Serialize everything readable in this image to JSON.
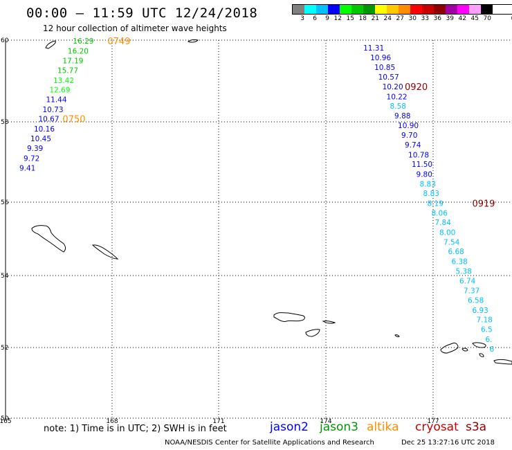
{
  "header": {
    "title": "00:00 – 11:59 UTC 12/24/2018",
    "subtitle": "12 hour collection of altimeter wave heights"
  },
  "color_scale": {
    "unit_label": "(ft)",
    "bins": [
      {
        "label": "3",
        "color": "#808080"
      },
      {
        "label": "6",
        "color": "#00ffff"
      },
      {
        "label": "9",
        "color": "#00c0ff"
      },
      {
        "label": "12",
        "color": "#0000ff"
      },
      {
        "label": "15",
        "color": "#00ff00"
      },
      {
        "label": "18",
        "color": "#00c800"
      },
      {
        "label": "21",
        "color": "#009600"
      },
      {
        "label": "24",
        "color": "#ffff00"
      },
      {
        "label": "27",
        "color": "#ffc800"
      },
      {
        "label": "30",
        "color": "#ff8c00"
      },
      {
        "label": "33",
        "color": "#ff0000"
      },
      {
        "label": "36",
        "color": "#c80000"
      },
      {
        "label": "39",
        "color": "#8c0000"
      },
      {
        "label": "42",
        "color": "#a000a0"
      },
      {
        "label": "45",
        "color": "#ff00ff"
      },
      {
        "label": "70",
        "color": "#ffa0ff"
      },
      {
        "label": "",
        "color": "#000000"
      }
    ]
  },
  "map": {
    "lat_labels": [
      "60",
      "58",
      "56",
      "54",
      "52",
      "50"
    ],
    "lon_labels": [
      "165",
      "168",
      "171",
      "174",
      "177"
    ],
    "extent": {
      "lon": [
        165,
        179.2
      ],
      "lat": [
        50,
        60
      ]
    }
  },
  "tracks": [
    {
      "name": "west-track",
      "points": [
        {
          "lon": 166.95,
          "lat": 59.98,
          "v": "16.29",
          "c": "#00c800"
        },
        {
          "lon": 166.8,
          "lat": 59.72,
          "v": "16.20",
          "c": "#00c800"
        },
        {
          "lon": 166.65,
          "lat": 59.46,
          "v": "17.19",
          "c": "#00c800"
        },
        {
          "lon": 166.5,
          "lat": 59.2,
          "v": "15.77",
          "c": "#00c800"
        },
        {
          "lon": 166.38,
          "lat": 58.94,
          "v": "13.42",
          "c": "#00ff00"
        },
        {
          "lon": 166.27,
          "lat": 58.69,
          "v": "12.69",
          "c": "#00ff00"
        },
        {
          "lon": 166.17,
          "lat": 58.43,
          "v": "11.44",
          "c": "#0000ff"
        },
        {
          "lon": 166.07,
          "lat": 58.17,
          "v": "10.73",
          "c": "#0000ff"
        },
        {
          "lon": 165.95,
          "lat": 57.92,
          "v": "10.67",
          "c": "#0000ff"
        },
        {
          "lon": 165.82,
          "lat": 57.66,
          "v": "10.16",
          "c": "#0000ff"
        },
        {
          "lon": 165.72,
          "lat": 57.4,
          "v": "10.45",
          "c": "#0000ff"
        },
        {
          "lon": 165.62,
          "lat": 57.14,
          "v": "9.39",
          "c": "#0000ff"
        },
        {
          "lon": 165.52,
          "lat": 56.88,
          "v": "9.72",
          "c": "#0000ff"
        },
        {
          "lon": 165.4,
          "lat": 56.62,
          "v": "9.41",
          "c": "#0000ff"
        }
      ]
    },
    {
      "name": "east-track",
      "points": [
        {
          "lon": 175.35,
          "lat": 59.8,
          "v": "11.31",
          "c": "#0000ff"
        },
        {
          "lon": 175.55,
          "lat": 59.54,
          "v": "10.96",
          "c": "#0000ff"
        },
        {
          "lon": 175.67,
          "lat": 59.29,
          "v": "10.85",
          "c": "#0000ff"
        },
        {
          "lon": 175.78,
          "lat": 59.03,
          "v": "10.57",
          "c": "#0000ff"
        },
        {
          "lon": 175.9,
          "lat": 58.77,
          "v": "10.20",
          "c": "#0000ff"
        },
        {
          "lon": 176.02,
          "lat": 58.51,
          "v": "10.22",
          "c": "#0000ff"
        },
        {
          "lon": 176.12,
          "lat": 58.26,
          "v": "8.58",
          "c": "#00c0ff"
        },
        {
          "lon": 176.25,
          "lat": 58.0,
          "v": "9.88",
          "c": "#0000ff"
        },
        {
          "lon": 176.35,
          "lat": 57.75,
          "v": "10.90",
          "c": "#0000ff"
        },
        {
          "lon": 176.45,
          "lat": 57.49,
          "v": "9.70",
          "c": "#0000ff"
        },
        {
          "lon": 176.55,
          "lat": 57.23,
          "v": "9.74",
          "c": "#0000ff"
        },
        {
          "lon": 176.65,
          "lat": 56.97,
          "v": "10.78",
          "c": "#0000ff"
        },
        {
          "lon": 176.75,
          "lat": 56.72,
          "v": "11.50",
          "c": "#0000ff"
        },
        {
          "lon": 176.88,
          "lat": 56.46,
          "v": "9.80",
          "c": "#0000ff"
        },
        {
          "lon": 176.98,
          "lat": 56.2,
          "v": "8.83",
          "c": "#00c0ff"
        },
        {
          "lon": 177.08,
          "lat": 55.95,
          "v": "8.83",
          "c": "#00c0ff"
        },
        {
          "lon": 177.2,
          "lat": 55.69,
          "v": "8.19",
          "c": "#00c0ff"
        },
        {
          "lon": 177.32,
          "lat": 55.43,
          "v": "8.06",
          "c": "#00c0ff"
        },
        {
          "lon": 177.42,
          "lat": 55.18,
          "v": "7.84",
          "c": "#00c0ff"
        },
        {
          "lon": 177.55,
          "lat": 54.92,
          "v": "8.00",
          "c": "#00c0ff"
        },
        {
          "lon": 177.67,
          "lat": 54.66,
          "v": "7.54",
          "c": "#00c0ff"
        },
        {
          "lon": 177.8,
          "lat": 54.41,
          "v": "6.68",
          "c": "#00c0ff"
        },
        {
          "lon": 177.9,
          "lat": 54.15,
          "v": "6.38",
          "c": "#00c0ff"
        },
        {
          "lon": 178.02,
          "lat": 53.89,
          "v": "5.38",
          "c": "#00c0ff"
        },
        {
          "lon": 178.13,
          "lat": 53.64,
          "v": "6.74",
          "c": "#00c0ff"
        },
        {
          "lon": 178.25,
          "lat": 53.38,
          "v": "7.37",
          "c": "#00c0ff"
        },
        {
          "lon": 178.37,
          "lat": 53.12,
          "v": "6.58",
          "c": "#00c0ff"
        },
        {
          "lon": 178.5,
          "lat": 52.86,
          "v": "6.93",
          "c": "#00c0ff"
        },
        {
          "lon": 178.62,
          "lat": 52.61,
          "v": "7.18",
          "c": "#00c0ff"
        },
        {
          "lon": 178.75,
          "lat": 52.35,
          "v": "6.5",
          "c": "#00c0ff"
        },
        {
          "lon": 178.88,
          "lat": 52.09,
          "v": "6.",
          "c": "#00c0ff"
        },
        {
          "lon": 179.0,
          "lat": 51.83,
          "v": "6",
          "c": "#00c0ff"
        }
      ]
    }
  ],
  "time_labels": [
    {
      "lon": 167.95,
      "lat": 59.98,
      "text": "0749",
      "color": "#ff8c00"
    },
    {
      "lon": 166.65,
      "lat": 57.92,
      "text": "0750",
      "color": "#ff8c00"
    },
    {
      "lon": 176.55,
      "lat": 58.77,
      "text": "0920",
      "color": "#8c0000"
    },
    {
      "lon": 178.5,
      "lat": 55.69,
      "text": "0919",
      "color": "#8c0000"
    }
  ],
  "note": "note: 1) Time is in UTC; 2) SWH is in feet",
  "legend": [
    {
      "label": "jason2",
      "color": "#0000ff"
    },
    {
      "label": "jason3",
      "color": "#009600"
    },
    {
      "label": "altika",
      "color": "#ff8c00"
    },
    {
      "label": "cryosat",
      "color": "#c80000"
    },
    {
      "label": "s3a",
      "color": "#8c0000"
    }
  ],
  "footer": {
    "credit": "NOAA/NESDIS Center for Satellite Applications and Research",
    "timestamp": "Dec 25 13:27:16 UTC 2018"
  }
}
